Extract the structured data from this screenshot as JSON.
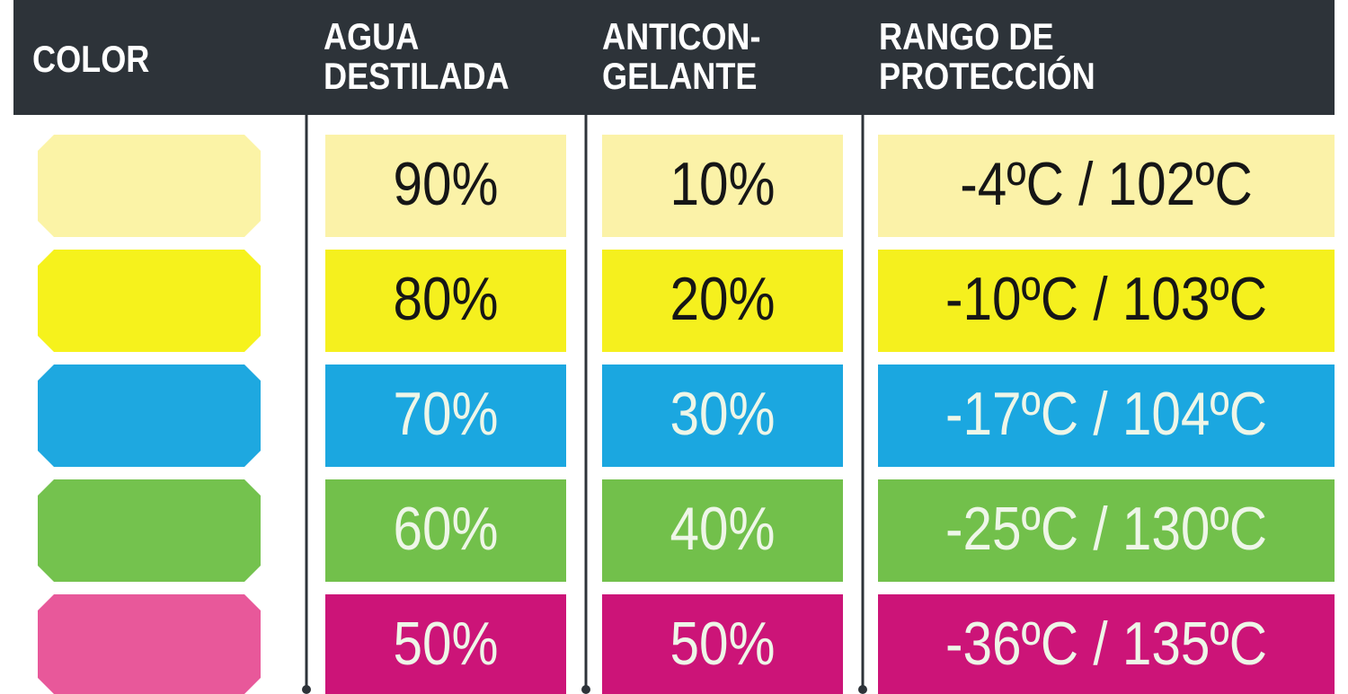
{
  "header": {
    "columns": [
      {
        "lines": [
          "COLOR"
        ]
      },
      {
        "lines": [
          "AGUA",
          "DESTILADA"
        ]
      },
      {
        "lines": [
          "ANTICON-",
          "GELANTE"
        ]
      },
      {
        "lines": [
          "RANGO DE",
          "PROTECCIÓN"
        ]
      }
    ]
  },
  "table": {
    "rows": [
      {
        "swatch": "#fbf3a6",
        "color": "#fbf2a8",
        "text_color": "#161616",
        "cells": [
          "90%",
          "10%",
          "-4ºC / 102ºC"
        ]
      },
      {
        "swatch": "#f6f21c",
        "color": "#f5f01e",
        "text_color": "#161616",
        "cells": [
          "80%",
          "20%",
          "-10ºC / 103ºC"
        ]
      },
      {
        "swatch": "#1ea8e0",
        "color": "#1ba7e0",
        "text_color": "#eef6e8",
        "cells": [
          "70%",
          "30%",
          "-17ºC / 104ºC"
        ]
      },
      {
        "swatch": "#74c24e",
        "color": "#72c04b",
        "text_color": "#eef6e8",
        "cells": [
          "60%",
          "40%",
          "-25ºC / 130ºC"
        ]
      },
      {
        "swatch": "#e8589a",
        "color": "#cc1478",
        "text_color": "#eef6e8",
        "cells": [
          "50%",
          "50%",
          "-36ºC / 135ºC"
        ]
      }
    ]
  }
}
